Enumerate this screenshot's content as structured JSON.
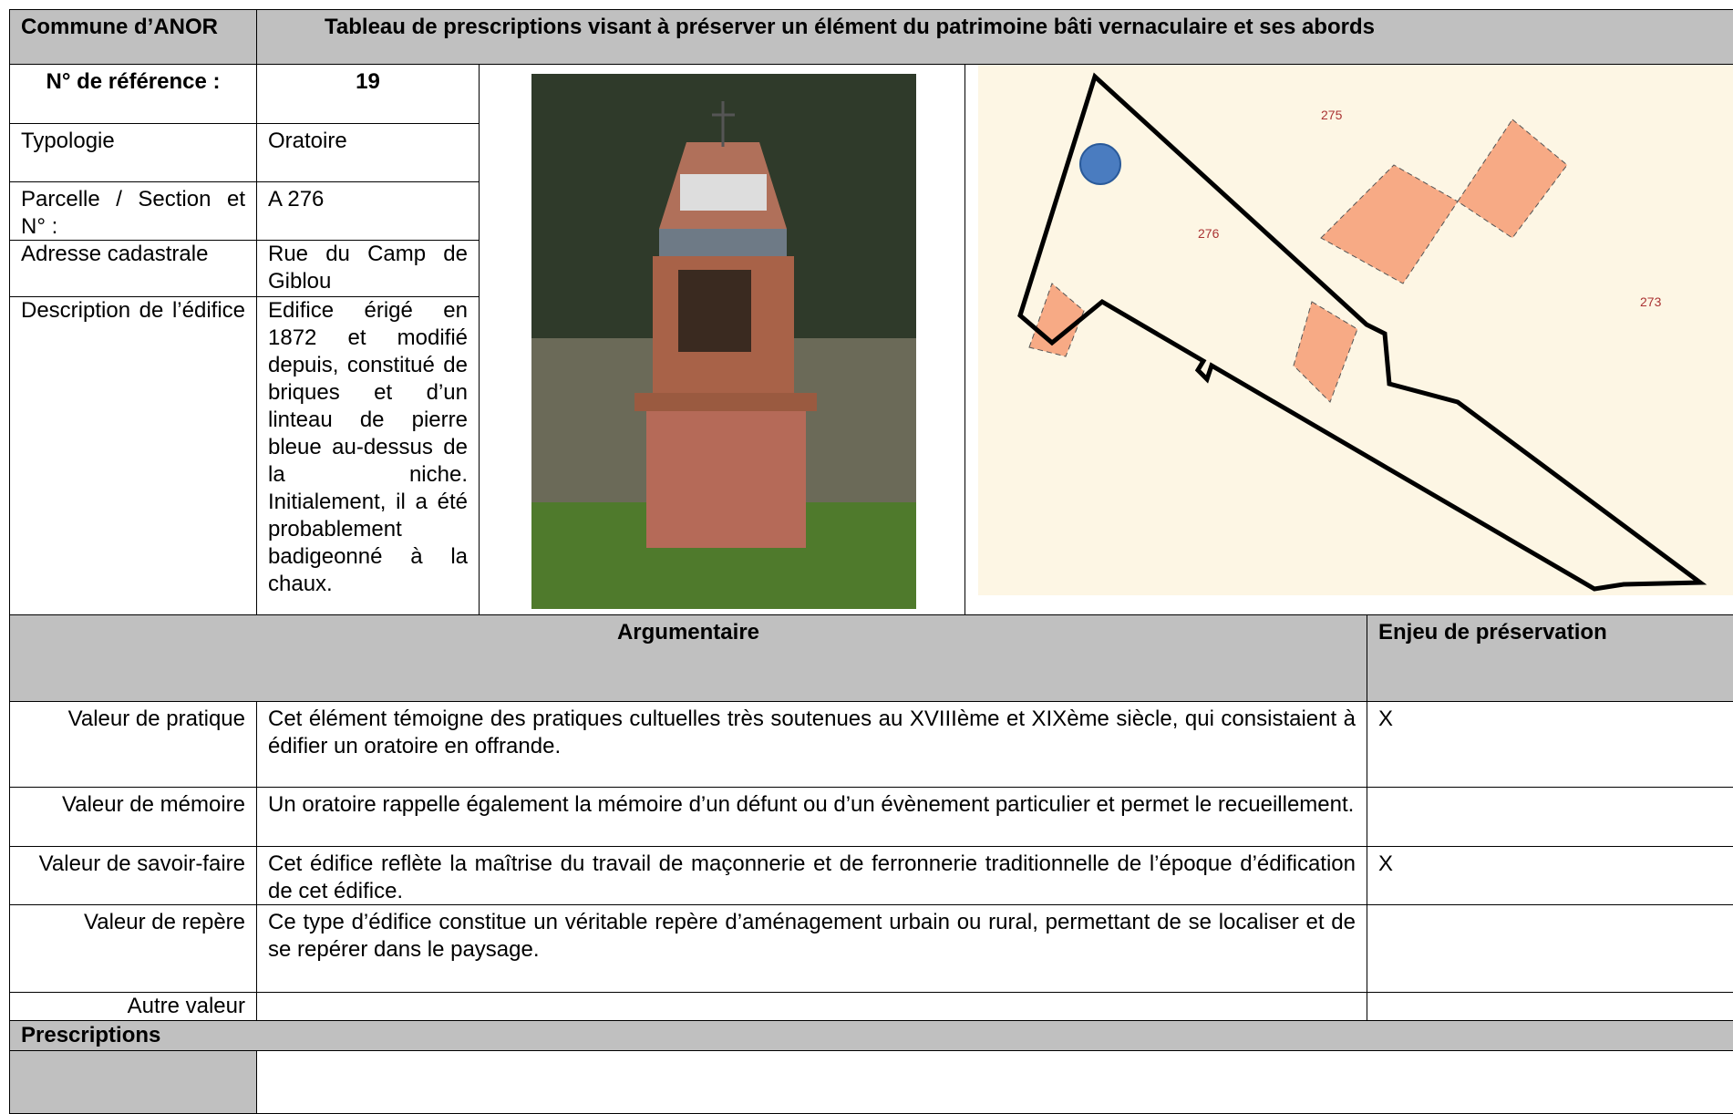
{
  "header": {
    "commune": "Commune d’ANOR",
    "title": "Tableau de prescriptions visant à préserver un élément du patrimoine bâti vernaculaire et ses abords"
  },
  "reference": {
    "label": "N° de référence :",
    "value": "19"
  },
  "fields": [
    {
      "label": "Typologie",
      "value": "Oratoire"
    },
    {
      "label": "Parcelle / Section et N° :",
      "value": "A 276"
    },
    {
      "label": "Adresse cadastrale",
      "value": "Rue du Camp de Giblou"
    },
    {
      "label": "Description de l’édifice",
      "value": "Edifice érigé en 1872 et modifié depuis, constitué de briques et d’un linteau de pierre bleue au-dessus de la niche. Initialement, il a été probablement badigeonné à la chaux."
    }
  ],
  "map": {
    "labels": [
      "275",
      "276",
      "273"
    ]
  },
  "argumentaire": {
    "header": "Argumentaire",
    "enjeu_header": "Enjeu de préservation",
    "rows": [
      {
        "label": "Valeur de pratique",
        "text": "Cet élément témoigne des pratiques cultuelles très soutenues au XVIIIème et XIXème siècle, qui consistaient à édifier un oratoire en offrande.",
        "enjeu": "X"
      },
      {
        "label": "Valeur de mémoire",
        "text": "Un oratoire rappelle également la mémoire d’un défunt ou d’un évènement particulier et permet le recueillement.",
        "enjeu": ""
      },
      {
        "label": "Valeur de savoir-faire",
        "text": "Cet édifice reflète la maîtrise du travail de maçonnerie et de ferronnerie traditionnelle de l’époque d’édification de cet édifice.",
        "enjeu": "X"
      },
      {
        "label": "Valeur de repère",
        "text": "Ce type d’édifice constitue un véritable repère d’aménagement urbain ou rural, permettant de se localiser et de se repérer dans le paysage.",
        "enjeu": ""
      },
      {
        "label": "Autre valeur",
        "text": "",
        "enjeu": ""
      }
    ]
  },
  "prescriptions": {
    "header": "Prescriptions"
  }
}
